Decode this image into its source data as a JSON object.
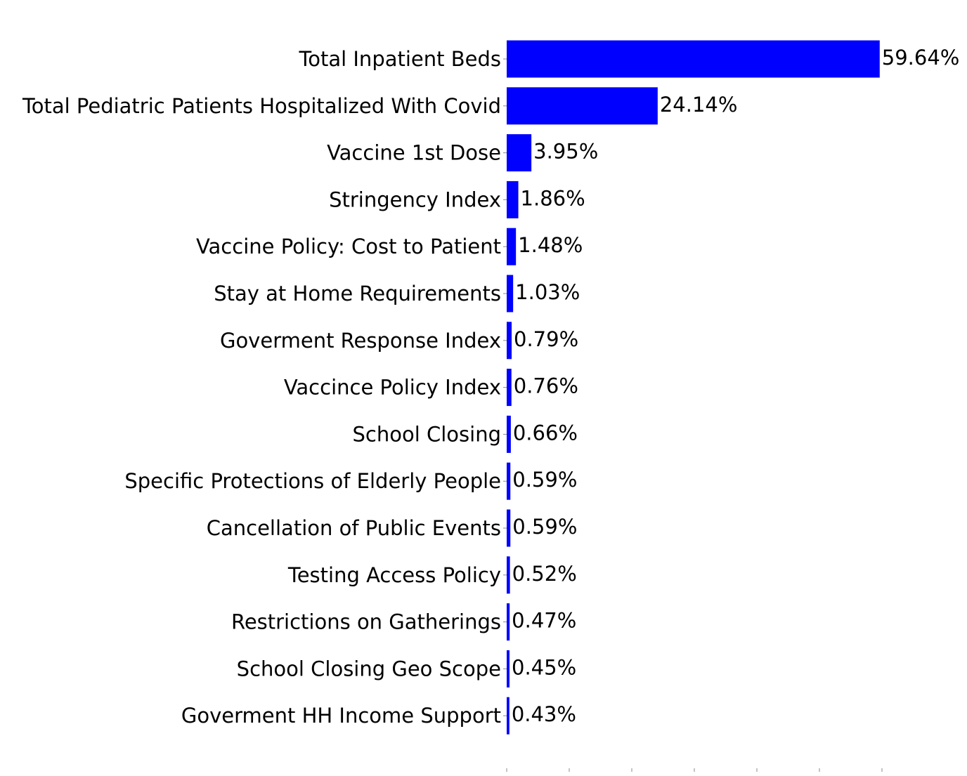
{
  "chart_data": {
    "type": "bar",
    "orientation": "horizontal",
    "categories": [
      "Total Inpatient Beds",
      "Total Pediatric Patients Hospitalized With Covid",
      "Vaccine 1st Dose",
      "Stringency Index",
      "Vaccine Policy: Cost to Patient",
      "Stay at Home Requirements",
      "Goverment Response Index",
      "Vaccince Policy Index",
      "School Closing",
      "Specific Protections of Elderly People",
      "Cancellation of Public Events",
      "Testing Access Policy",
      "Restrictions on Gatherings",
      "School Closing Geo Scope",
      "Goverment HH Income Support"
    ],
    "values": [
      59.64,
      24.14,
      3.95,
      1.86,
      1.48,
      1.03,
      0.79,
      0.76,
      0.66,
      0.59,
      0.59,
      0.52,
      0.47,
      0.45,
      0.43
    ],
    "value_labels": [
      "59.64%",
      "24.14%",
      "3.95%",
      "1.86%",
      "1.48%",
      "1.03%",
      "0.79%",
      "0.76%",
      "0.66%",
      "0.59%",
      "0.59%",
      "0.52%",
      "0.47%",
      "0.45%",
      "0.43%"
    ],
    "bar_color": "#0000ff",
    "xlim": [
      0,
      60
    ],
    "x_ticks": [
      0,
      10,
      20,
      30,
      40,
      50,
      60
    ],
    "grid": false,
    "legend": "none"
  }
}
